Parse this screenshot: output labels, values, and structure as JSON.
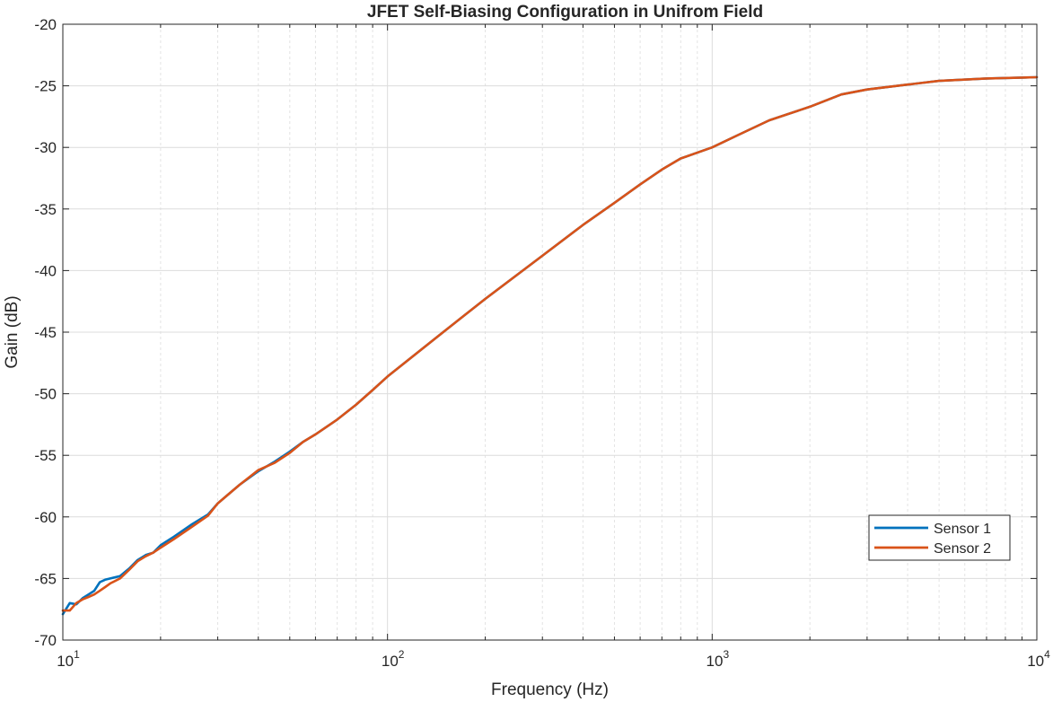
{
  "chart_data": {
    "type": "line",
    "title": "JFET Self-Biasing Configuration in Unifrom Field",
    "xlabel": "Frequency (Hz)",
    "ylabel": "Gain (dB)",
    "xscale": "log",
    "xlim": [
      10,
      10000
    ],
    "ylim": [
      -70,
      -20
    ],
    "grid": true,
    "legend_position": "bottom-right",
    "x_ticks": [
      {
        "base": "10",
        "exp": "1",
        "value": 10
      },
      {
        "base": "10",
        "exp": "2",
        "value": 100
      },
      {
        "base": "10",
        "exp": "3",
        "value": 1000
      },
      {
        "base": "10",
        "exp": "4",
        "value": 10000
      }
    ],
    "y_ticks": [
      "-70",
      "-65",
      "-60",
      "-55",
      "-50",
      "-45",
      "-40",
      "-35",
      "-30",
      "-25",
      "-20"
    ],
    "series": [
      {
        "name": "Sensor 1",
        "color": "#0072BD",
        "x": [
          10,
          10.5,
          11,
          11.5,
          12,
          12.5,
          13,
          13.5,
          14,
          15,
          16,
          17,
          18,
          19,
          20,
          22,
          25,
          28,
          30,
          35,
          40,
          45,
          50,
          55,
          60,
          70,
          80,
          90,
          100,
          150,
          200,
          300,
          400,
          500,
          600,
          700,
          800,
          1000,
          1200,
          1500,
          2000,
          2500,
          3000,
          4000,
          5000,
          7000,
          10000
        ],
        "y": [
          -67.9,
          -67.0,
          -67.1,
          -66.6,
          -66.3,
          -66.0,
          -65.3,
          -65.1,
          -65.0,
          -64.8,
          -64.2,
          -63.5,
          -63.1,
          -62.9,
          -62.3,
          -61.6,
          -60.6,
          -59.8,
          -58.9,
          -57.4,
          -56.3,
          -55.5,
          -54.7,
          -53.9,
          -53.3,
          -52.1,
          -50.9,
          -49.7,
          -48.6,
          -44.9,
          -42.3,
          -38.8,
          -36.3,
          -34.5,
          -33.0,
          -31.8,
          -30.9,
          -30.0,
          -29.0,
          -27.8,
          -26.7,
          -25.7,
          -25.3,
          -24.9,
          -24.6,
          -24.4,
          -24.3
        ]
      },
      {
        "name": "Sensor 2",
        "color": "#D95319",
        "x": [
          10,
          10.5,
          11,
          11.5,
          12,
          12.5,
          13,
          13.5,
          14,
          15,
          16,
          17,
          18,
          19,
          20,
          22,
          25,
          28,
          30,
          35,
          40,
          45,
          50,
          55,
          60,
          70,
          80,
          90,
          100,
          150,
          200,
          300,
          400,
          500,
          600,
          700,
          800,
          1000,
          1200,
          1500,
          2000,
          2500,
          3000,
          4000,
          5000,
          7000,
          10000
        ],
        "y": [
          -67.6,
          -67.6,
          -67.0,
          -66.7,
          -66.5,
          -66.3,
          -66.0,
          -65.7,
          -65.4,
          -65.0,
          -64.3,
          -63.6,
          -63.2,
          -62.9,
          -62.5,
          -61.8,
          -60.8,
          -59.9,
          -58.9,
          -57.4,
          -56.2,
          -55.6,
          -54.8,
          -53.9,
          -53.3,
          -52.1,
          -50.9,
          -49.7,
          -48.6,
          -44.9,
          -42.3,
          -38.8,
          -36.3,
          -34.5,
          -33.0,
          -31.8,
          -30.9,
          -30.0,
          -29.0,
          -27.8,
          -26.7,
          -25.7,
          -25.3,
          -24.9,
          -24.6,
          -24.4,
          -24.3
        ]
      }
    ]
  }
}
